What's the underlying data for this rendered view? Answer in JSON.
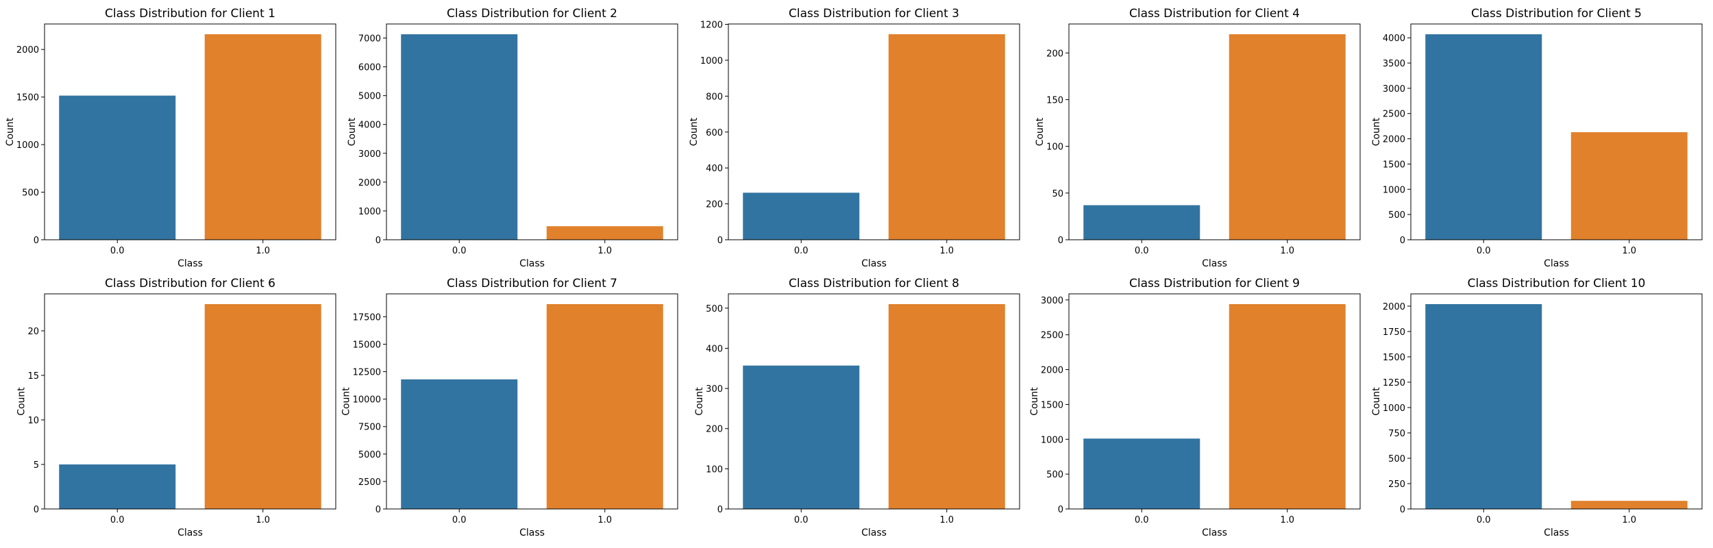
{
  "colors": {
    "class_0": "#3274a1",
    "class_1": "#e1812c"
  },
  "chart_data": [
    {
      "type": "bar",
      "title": "Class Distribution for Client 1",
      "xlabel": "Class",
      "ylabel": "Count",
      "categories": [
        "0.0",
        "1.0"
      ],
      "values": [
        1515,
        2160
      ],
      "ylim": [
        0,
        2268
      ],
      "yticks": [
        0,
        500,
        1000,
        1500,
        2000
      ],
      "ytick_labels": [
        "0",
        "500",
        "1000",
        "1500",
        "2000"
      ]
    },
    {
      "type": "bar",
      "title": "Class Distribution for Client 2",
      "xlabel": "Class",
      "ylabel": "Count",
      "categories": [
        "0.0",
        "1.0"
      ],
      "values": [
        7130,
        470
      ],
      "ylim": [
        0,
        7487
      ],
      "yticks": [
        0,
        1000,
        2000,
        3000,
        4000,
        5000,
        6000,
        7000
      ],
      "ytick_labels": [
        "0",
        "1000",
        "2000",
        "3000",
        "4000",
        "5000",
        "6000",
        "7000"
      ]
    },
    {
      "type": "bar",
      "title": "Class Distribution for Client 3",
      "xlabel": "Class",
      "ylabel": "Count",
      "categories": [
        "0.0",
        "1.0"
      ],
      "values": [
        262,
        1145
      ],
      "ylim": [
        0,
        1202
      ],
      "yticks": [
        0,
        200,
        400,
        600,
        800,
        1000,
        1200
      ],
      "ytick_labels": [
        "0",
        "200",
        "400",
        "600",
        "800",
        "1000",
        "1200"
      ]
    },
    {
      "type": "bar",
      "title": "Class Distribution for Client 4",
      "xlabel": "Class",
      "ylabel": "Count",
      "categories": [
        "0.0",
        "1.0"
      ],
      "values": [
        37,
        220
      ],
      "ylim": [
        0,
        231
      ],
      "yticks": [
        0,
        50,
        100,
        150,
        200
      ],
      "ytick_labels": [
        "0",
        "50",
        "100",
        "150",
        "200"
      ]
    },
    {
      "type": "bar",
      "title": "Class Distribution for Client 5",
      "xlabel": "Class",
      "ylabel": "Count",
      "categories": [
        "0.0",
        "1.0"
      ],
      "values": [
        4070,
        2130
      ],
      "ylim": [
        0,
        4274
      ],
      "yticks": [
        0,
        500,
        1000,
        1500,
        2000,
        2500,
        3000,
        3500,
        4000
      ],
      "ytick_labels": [
        "0",
        "500",
        "1000",
        "1500",
        "2000",
        "2500",
        "3000",
        "3500",
        "4000"
      ]
    },
    {
      "type": "bar",
      "title": "Class Distribution for Client 6",
      "xlabel": "Class",
      "ylabel": "Count",
      "categories": [
        "0.0",
        "1.0"
      ],
      "values": [
        5,
        23
      ],
      "ylim": [
        0,
        24.15
      ],
      "yticks": [
        0,
        5,
        10,
        15,
        20
      ],
      "ytick_labels": [
        "0",
        "5",
        "10",
        "15",
        "20"
      ]
    },
    {
      "type": "bar",
      "title": "Class Distribution for Client 7",
      "xlabel": "Class",
      "ylabel": "Count",
      "categories": [
        "0.0",
        "1.0"
      ],
      "values": [
        11800,
        18650
      ],
      "ylim": [
        0,
        19583
      ],
      "yticks": [
        0,
        2500,
        5000,
        7500,
        10000,
        12500,
        15000,
        17500
      ],
      "ytick_labels": [
        "0",
        "2500",
        "5000",
        "7500",
        "10000",
        "12500",
        "15000",
        "17500"
      ]
    },
    {
      "type": "bar",
      "title": "Class Distribution for Client 8",
      "xlabel": "Class",
      "ylabel": "Count",
      "categories": [
        "0.0",
        "1.0"
      ],
      "values": [
        357,
        510
      ],
      "ylim": [
        0,
        535.5
      ],
      "yticks": [
        0,
        100,
        200,
        300,
        400,
        500
      ],
      "ytick_labels": [
        "0",
        "100",
        "200",
        "300",
        "400",
        "500"
      ]
    },
    {
      "type": "bar",
      "title": "Class Distribution for Client 9",
      "xlabel": "Class",
      "ylabel": "Count",
      "categories": [
        "0.0",
        "1.0"
      ],
      "values": [
        1010,
        2940
      ],
      "ylim": [
        0,
        3087
      ],
      "yticks": [
        0,
        500,
        1000,
        1500,
        2000,
        2500,
        3000
      ],
      "ytick_labels": [
        "0",
        "500",
        "1000",
        "1500",
        "2000",
        "2500",
        "3000"
      ]
    },
    {
      "type": "bar",
      "title": "Class Distribution for Client 10",
      "xlabel": "Class",
      "ylabel": "Count",
      "categories": [
        "0.0",
        "1.0"
      ],
      "values": [
        2020,
        80
      ],
      "ylim": [
        0,
        2121
      ],
      "yticks": [
        0,
        250,
        500,
        750,
        1000,
        1250,
        1500,
        1750,
        2000
      ],
      "ytick_labels": [
        "0",
        "250",
        "500",
        "750",
        "1000",
        "1250",
        "1500",
        "1750",
        "2000"
      ]
    }
  ]
}
